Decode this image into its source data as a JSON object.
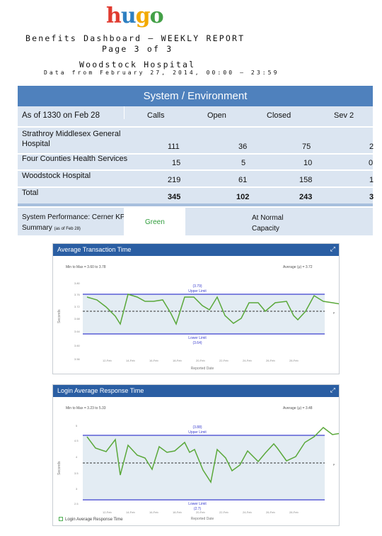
{
  "header": {
    "logo_letters": [
      "h",
      "u",
      "g",
      "o"
    ],
    "logo_colors": [
      "#e03a2f",
      "#2d7fc1",
      "#f2a900",
      "#43a047"
    ],
    "title_line": "Benefits Dashboard – WEEKLY REPORT",
    "page_line": "Page 3 of 3",
    "hospital": "Woodstock Hospital",
    "date_range": "Data from February 27, 2014, 00:00 – 23:59"
  },
  "system_table": {
    "title": "System / Environment",
    "as_of": "As of 1330 on Feb 28",
    "columns": [
      "Calls",
      "Open",
      "Closed",
      "Sev 2"
    ],
    "rows": [
      {
        "name": "Strathroy Middlesex General Hospital",
        "values": [
          "111",
          "36",
          "75",
          "2"
        ]
      },
      {
        "name": "Four Counties Health Services",
        "values": [
          "15",
          "5",
          "10",
          "0"
        ]
      },
      {
        "name": "Woodstock Hospital",
        "values": [
          "219",
          "61",
          "158",
          "1"
        ]
      },
      {
        "name": "Total",
        "values": [
          "345",
          "102",
          "243",
          "3"
        ]
      }
    ],
    "kpi_label": "System Performance: Cerner KPI Summary",
    "kpi_note": "(as of Feb 28)",
    "kpi_status": "Green",
    "kpi_status_color": "#2e9c3a",
    "kpi_capacity": "At Normal Capacity"
  },
  "panels": [
    {
      "title": "Average Transaction Time",
      "minmax": "Min to Max = 3.60 to 3.78",
      "average": "Average (μ) = 3.72",
      "upper_label": "Upper Limit",
      "upper_value": "(3.79)",
      "lower_label": "Lower Limit",
      "lower_value": "(3.64)",
      "x_title": "Reported Date",
      "y_title": "Seconds",
      "icon": "expand-icon"
    },
    {
      "title": "Login Average Response Time",
      "minmax": "Min to Max = 3.23 to 5.33",
      "average": "Average (μ) = 3.48",
      "upper_label": "Upper Limit",
      "upper_value": "(3.88)",
      "lower_label": "Lower Limit",
      "lower_value": "(2.7)",
      "x_title": "Reported Date",
      "y_title": "Seconds",
      "legend": "Login Average Response Time",
      "icon": "expand-icon"
    }
  ],
  "colors": {
    "header_blue": "#4f81bd",
    "panel_header": "#2a5ea3",
    "table_fill": "#dbe5f1",
    "limit_line": "#3b3fcf",
    "series_line": "#5aa83a",
    "band_fill": "#e3ecf3"
  }
}
